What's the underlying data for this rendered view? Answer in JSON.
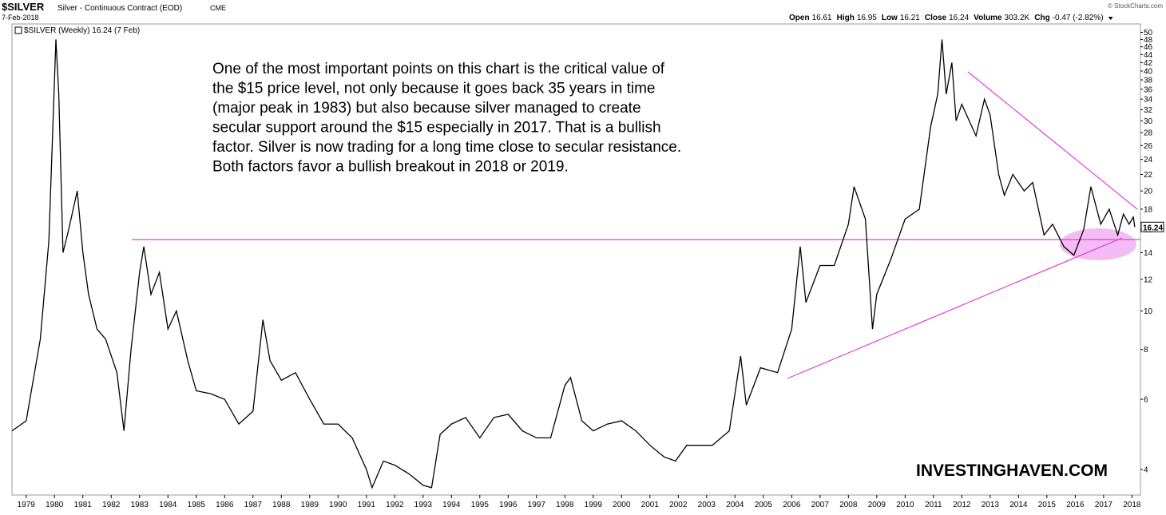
{
  "chart_data": {
    "type": "line",
    "title": "$SILVER",
    "subtitle": "Silver - Continuous Contract (EOD)",
    "exchange": "CME",
    "date": "7-Feb-2018",
    "copyright": "© StockCharts.com",
    "quote": [
      {
        "label": "Open",
        "value": "16.61"
      },
      {
        "label": "High",
        "value": "16.95"
      },
      {
        "label": "Low",
        "value": "16.21"
      },
      {
        "label": "Close",
        "value": "16.24"
      },
      {
        "label": "Volume",
        "value": "303.2K"
      },
      {
        "label": "Chg",
        "value": "-0.47 (-2.82%)"
      }
    ],
    "legend_label": "$SILVER (Weekly) 16.24 (7 Feb)",
    "last_price_label": "16.24",
    "annotation": [
      "One of the most important points on this chart is the critical value of",
      "the $15 price level, not only because it goes back 35 years in time",
      "(major peak in 1983) but also because silver managed to create",
      "secular support around the $15 especially in 2017. That is a bullish",
      "factor. Silver is now trading for a long time close to secular resistance.",
      "Both factors favor a bullish breakout in 2018 or 2019."
    ],
    "watermark": "INVESTINGHAVEN.COM",
    "log_scale": true,
    "xlim": [
      1978.5,
      2018.3
    ],
    "xticks": [
      1979,
      1980,
      1981,
      1982,
      1983,
      1984,
      1985,
      1986,
      1987,
      1988,
      1989,
      1990,
      1991,
      1992,
      1993,
      1994,
      1995,
      1996,
      1997,
      1998,
      1999,
      2000,
      2001,
      2002,
      2003,
      2004,
      2005,
      2006,
      2007,
      2008,
      2009,
      2010,
      2011,
      2012,
      2013,
      2014,
      2015,
      2016,
      2017,
      2018
    ],
    "ylim": [
      3.45,
      52.5
    ],
    "yticks": [
      4,
      6,
      8,
      10,
      12,
      14,
      16,
      18,
      20,
      22,
      24,
      26,
      28,
      30,
      32,
      34,
      36,
      38,
      40,
      42,
      44,
      46,
      48,
      50
    ],
    "x": [
      1978.5,
      1979.0,
      1979.5,
      1979.8,
      1980.05,
      1980.15,
      1980.3,
      1980.5,
      1980.8,
      1981.0,
      1981.2,
      1981.5,
      1981.8,
      1982.2,
      1982.45,
      1982.7,
      1983.0,
      1983.15,
      1983.4,
      1983.7,
      1984.0,
      1984.3,
      1984.7,
      1985.0,
      1985.5,
      1986.0,
      1986.5,
      1987.0,
      1987.35,
      1987.6,
      1988.0,
      1988.5,
      1989.0,
      1989.5,
      1990.0,
      1990.5,
      1991.0,
      1991.2,
      1991.6,
      1992.0,
      1992.5,
      1993.0,
      1993.3,
      1993.6,
      1994.0,
      1994.5,
      1995.0,
      1995.5,
      1996.0,
      1996.5,
      1997.0,
      1997.5,
      1998.0,
      1998.2,
      1998.6,
      1999.0,
      1999.5,
      2000.0,
      2000.5,
      2001.0,
      2001.5,
      2001.9,
      2002.3,
      2002.8,
      2003.2,
      2003.8,
      2004.2,
      2004.4,
      2004.9,
      2005.5,
      2006.0,
      2006.3,
      2006.5,
      2007.0,
      2007.5,
      2008.0,
      2008.2,
      2008.6,
      2008.85,
      2009.0,
      2009.5,
      2010.0,
      2010.5,
      2010.9,
      2011.15,
      2011.3,
      2011.45,
      2011.65,
      2011.8,
      2012.0,
      2012.5,
      2012.8,
      2013.0,
      2013.3,
      2013.5,
      2013.8,
      2014.2,
      2014.5,
      2014.9,
      2015.2,
      2015.6,
      2015.95,
      2016.3,
      2016.55,
      2016.9,
      2017.2,
      2017.5,
      2017.7,
      2017.9,
      2018.05,
      2018.1
    ],
    "series": [
      {
        "name": "$SILVER",
        "color": "#000000",
        "values": [
          5.0,
          5.3,
          8.5,
          15,
          48,
          35,
          14,
          16,
          20,
          14,
          11,
          9,
          8.5,
          7,
          5.0,
          8,
          12.5,
          14.5,
          11,
          12.5,
          9,
          10,
          7.5,
          6.3,
          6.2,
          6.0,
          5.2,
          5.6,
          9.5,
          7.5,
          6.7,
          7.0,
          6.0,
          5.2,
          5.2,
          4.8,
          4.0,
          3.6,
          4.2,
          4.1,
          3.9,
          3.65,
          3.6,
          4.9,
          5.2,
          5.4,
          4.8,
          5.4,
          5.5,
          5.0,
          4.8,
          4.8,
          6.5,
          6.8,
          5.3,
          5.0,
          5.2,
          5.3,
          5.0,
          4.6,
          4.3,
          4.2,
          4.6,
          4.6,
          4.6,
          5.0,
          7.7,
          5.8,
          7.2,
          7.0,
          9.0,
          14.5,
          10.5,
          13.0,
          13.0,
          16.5,
          20.5,
          17,
          9.0,
          11,
          13.5,
          17,
          18,
          29,
          35,
          48,
          35,
          42,
          30,
          33,
          27.5,
          34,
          31,
          22,
          19.5,
          22,
          20,
          21,
          15.5,
          16.5,
          14.5,
          13.8,
          16,
          20.5,
          16.5,
          18,
          15.5,
          17.5,
          16.5,
          17.2,
          16.24
        ]
      }
    ]
  }
}
